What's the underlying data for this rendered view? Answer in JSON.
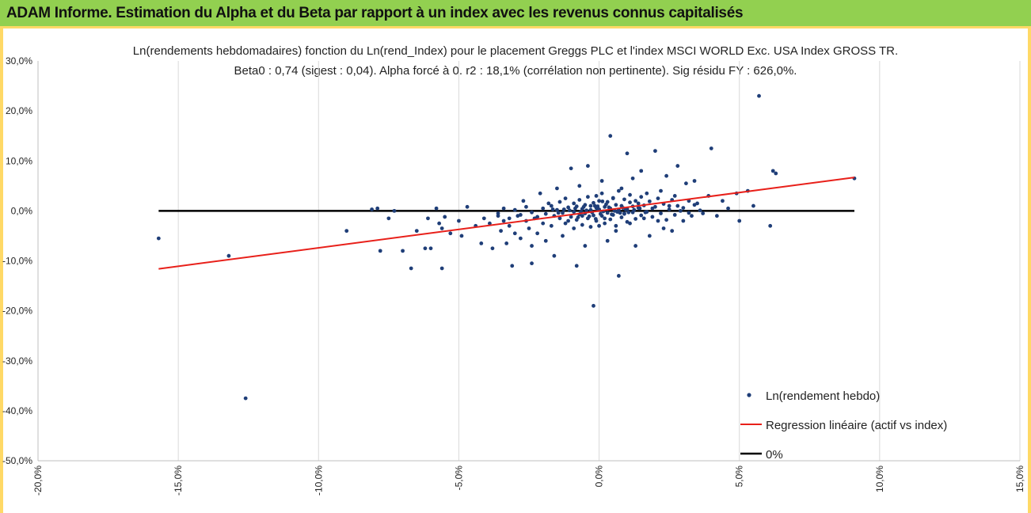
{
  "header": {
    "title": "ADAM Informe. Estimation du Alpha et du Beta par rapport à un index avec les revenus connus capitalisés"
  },
  "colors": {
    "banner": "#92d050",
    "frame": "#ffd966",
    "points": "#1f3e78",
    "regression": "#e8201a",
    "zero": "#000000"
  },
  "chart_data": {
    "type": "scatter",
    "title": "Ln(rendements hebdomadaires) fonction du Ln(rend_Index) pour le placement Greggs PLC et l'index MSCI WORLD Exc. USA Index GROSS TR.",
    "subtitle": "Beta0 : 0,74  (sigest : 0,04).  Alpha forcé à 0. r2 : 18,1% (corrélation non pertinente). Sig résidu FY : 626,0%.",
    "xlabel": "",
    "ylabel": "",
    "xlim": [
      -20,
      15
    ],
    "ylim": [
      -50,
      30
    ],
    "x_ticks": [
      "-20,0%",
      "-15,0%",
      "-10,0%",
      "-5,0%",
      "0,0%",
      "5,0%",
      "10,0%",
      "15,0%"
    ],
    "y_ticks": [
      "30,0%",
      "20,0%",
      "10,0%",
      "0,0%",
      "-10,0%",
      "-20,0%",
      "-30,0%",
      "-40,0%",
      "-50,0%"
    ],
    "grid": "vertical",
    "legend_position": "bottom-right",
    "series": [
      {
        "name": "Ln(rendement hebdo)",
        "kind": "points",
        "points": [
          [
            -15.7,
            -5.5
          ],
          [
            -13.2,
            -9.0
          ],
          [
            -12.6,
            -37.5
          ],
          [
            -9.0,
            -4.0
          ],
          [
            -8.1,
            0.3
          ],
          [
            -7.9,
            0.5
          ],
          [
            -7.8,
            -8.0
          ],
          [
            -7.5,
            -1.5
          ],
          [
            -7.3,
            0.0
          ],
          [
            -7.0,
            -8.0
          ],
          [
            -6.7,
            -11.5
          ],
          [
            -6.5,
            -4.0
          ],
          [
            -6.2,
            -7.5
          ],
          [
            -6.1,
            -1.5
          ],
          [
            -6.0,
            -7.5
          ],
          [
            -5.8,
            0.5
          ],
          [
            -5.7,
            -2.5
          ],
          [
            -5.6,
            -3.5
          ],
          [
            -5.6,
            -11.5
          ],
          [
            -5.5,
            -1.2
          ],
          [
            -5.3,
            -4.5
          ],
          [
            -5.0,
            -2.0
          ],
          [
            -4.9,
            -5.0
          ],
          [
            -4.7,
            0.8
          ],
          [
            -4.4,
            -3.0
          ],
          [
            -4.2,
            -6.5
          ],
          [
            -4.1,
            -1.5
          ],
          [
            -3.9,
            -2.5
          ],
          [
            -3.8,
            -7.5
          ],
          [
            -3.6,
            -1.0
          ],
          [
            -3.5,
            -4.0
          ],
          [
            -3.4,
            -2.0
          ],
          [
            -3.3,
            -6.5
          ],
          [
            -3.2,
            -3.0
          ],
          [
            -3.1,
            -11.0
          ],
          [
            -3.0,
            -4.5
          ],
          [
            -2.9,
            -1.0
          ],
          [
            -2.8,
            -5.5
          ],
          [
            -2.7,
            2.0
          ],
          [
            -2.6,
            -2.0
          ],
          [
            -2.5,
            -3.5
          ],
          [
            -2.4,
            -7.0
          ],
          [
            -2.4,
            -10.5
          ],
          [
            -2.3,
            -1.5
          ],
          [
            -2.2,
            -4.5
          ],
          [
            -2.1,
            3.5
          ],
          [
            -2.0,
            -2.5
          ],
          [
            -1.9,
            -6.0
          ],
          [
            -1.8,
            1.5
          ],
          [
            -1.7,
            -3.0
          ],
          [
            -1.6,
            -9.0
          ],
          [
            -1.5,
            4.5
          ],
          [
            -1.4,
            -1.5
          ],
          [
            -1.3,
            -5.0
          ],
          [
            -1.2,
            2.5
          ],
          [
            -1.1,
            -2.0
          ],
          [
            -1.0,
            8.5
          ],
          [
            -0.9,
            -3.5
          ],
          [
            -0.8,
            -11.0
          ],
          [
            -0.7,
            5.0
          ],
          [
            -0.6,
            -1.0
          ],
          [
            -0.5,
            -7.0
          ],
          [
            -0.4,
            9.0
          ],
          [
            -0.3,
            1.0
          ],
          [
            -0.2,
            -19.0
          ],
          [
            -0.1,
            3.0
          ],
          [
            0.0,
            -3.0
          ],
          [
            0.1,
            6.0
          ],
          [
            0.2,
            -1.5
          ],
          [
            0.3,
            -6.0
          ],
          [
            0.4,
            15.0
          ],
          [
            0.5,
            2.5
          ],
          [
            0.6,
            -4.0
          ],
          [
            0.7,
            -13.0
          ],
          [
            0.8,
            4.5
          ],
          [
            0.9,
            -0.5
          ],
          [
            1.0,
            11.5
          ],
          [
            1.1,
            -2.5
          ],
          [
            1.2,
            6.5
          ],
          [
            1.3,
            -7.0
          ],
          [
            1.4,
            1.5
          ],
          [
            1.5,
            8.0
          ],
          [
            1.6,
            -1.5
          ],
          [
            1.7,
            3.5
          ],
          [
            1.8,
            -5.0
          ],
          [
            1.9,
            0.5
          ],
          [
            2.0,
            12.0
          ],
          [
            2.1,
            -2.0
          ],
          [
            2.2,
            4.0
          ],
          [
            2.3,
            -3.5
          ],
          [
            2.4,
            7.0
          ],
          [
            2.5,
            1.0
          ],
          [
            2.6,
            -4.0
          ],
          [
            2.7,
            3.0
          ],
          [
            2.8,
            9.0
          ],
          [
            2.9,
            0.0
          ],
          [
            3.0,
            -2.0
          ],
          [
            3.1,
            5.5
          ],
          [
            3.2,
            2.0
          ],
          [
            3.3,
            -1.0
          ],
          [
            3.4,
            6.0
          ],
          [
            3.5,
            1.5
          ],
          [
            3.7,
            -0.5
          ],
          [
            3.9,
            3.0
          ],
          [
            4.0,
            12.5
          ],
          [
            4.2,
            -1.0
          ],
          [
            4.4,
            2.0
          ],
          [
            4.6,
            0.5
          ],
          [
            4.9,
            3.5
          ],
          [
            5.0,
            -2.0
          ],
          [
            5.3,
            4.0
          ],
          [
            5.5,
            1.0
          ],
          [
            5.7,
            23.0
          ],
          [
            6.1,
            -3.0
          ],
          [
            6.2,
            8.0
          ],
          [
            6.3,
            7.5
          ],
          [
            9.1,
            6.5
          ],
          [
            -3.6,
            -0.5
          ],
          [
            -3.4,
            0.5
          ],
          [
            -3.2,
            -1.5
          ],
          [
            -3.0,
            0.2
          ],
          [
            -2.8,
            -0.8
          ],
          [
            -2.6,
            0.8
          ],
          [
            -2.4,
            -0.3
          ],
          [
            -2.2,
            -1.2
          ],
          [
            -2.0,
            0.5
          ],
          [
            -1.9,
            -0.6
          ],
          [
            -1.7,
            1.0
          ],
          [
            -1.6,
            -1.0
          ],
          [
            -1.5,
            0.2
          ],
          [
            -1.4,
            1.8
          ],
          [
            -1.3,
            -0.4
          ],
          [
            -1.2,
            -2.5
          ],
          [
            -1.1,
            0.7
          ],
          [
            -1.0,
            -1.2
          ],
          [
            -0.9,
            1.5
          ],
          [
            -0.9,
            -0.2
          ],
          [
            -0.8,
            0.9
          ],
          [
            -0.8,
            -1.8
          ],
          [
            -0.7,
            2.2
          ],
          [
            -0.7,
            -0.7
          ],
          [
            -0.6,
            0.4
          ],
          [
            -0.6,
            -2.8
          ],
          [
            -0.5,
            1.2
          ],
          [
            -0.5,
            -0.5
          ],
          [
            -0.4,
            2.8
          ],
          [
            -0.4,
            -1.5
          ],
          [
            -0.3,
            0.2
          ],
          [
            -0.3,
            -3.2
          ],
          [
            -0.2,
            1.6
          ],
          [
            -0.2,
            -0.9
          ],
          [
            -0.1,
            0.6
          ],
          [
            -0.1,
            -2.0
          ],
          [
            0.0,
            2.0
          ],
          [
            0.0,
            0.3
          ],
          [
            0.1,
            -1.0
          ],
          [
            0.1,
            3.5
          ],
          [
            0.2,
            0.8
          ],
          [
            0.2,
            -2.5
          ],
          [
            0.3,
            1.8
          ],
          [
            0.3,
            -0.4
          ],
          [
            0.4,
            0.5
          ],
          [
            0.4,
            -1.7
          ],
          [
            0.5,
            2.6
          ],
          [
            0.5,
            -0.8
          ],
          [
            0.6,
            1.2
          ],
          [
            0.6,
            -3.0
          ],
          [
            0.7,
            0.2
          ],
          [
            0.7,
            4.0
          ],
          [
            0.8,
            -1.3
          ],
          [
            0.8,
            1.0
          ],
          [
            0.9,
            2.3
          ],
          [
            0.9,
            -0.6
          ],
          [
            1.0,
            0.4
          ],
          [
            1.0,
            -2.2
          ],
          [
            1.1,
            1.7
          ],
          [
            1.1,
            3.2
          ],
          [
            1.2,
            -0.3
          ],
          [
            1.2,
            0.9
          ],
          [
            1.3,
            2.0
          ],
          [
            1.3,
            -1.6
          ],
          [
            1.4,
            0.6
          ],
          [
            1.5,
            -0.9
          ],
          [
            1.5,
            2.8
          ],
          [
            1.6,
            1.1
          ],
          [
            1.7,
            -0.2
          ],
          [
            1.8,
            1.9
          ],
          [
            1.9,
            -1.2
          ],
          [
            2.0,
            0.8
          ],
          [
            2.1,
            2.5
          ],
          [
            2.2,
            -0.5
          ],
          [
            2.3,
            1.4
          ],
          [
            2.4,
            -1.8
          ],
          [
            2.5,
            0.3
          ],
          [
            2.6,
            2.2
          ],
          [
            2.7,
            -0.8
          ],
          [
            2.8,
            1.0
          ],
          [
            3.0,
            0.6
          ],
          [
            3.2,
            -0.4
          ],
          [
            3.4,
            1.2
          ],
          [
            3.6,
            0.1
          ],
          [
            -0.45,
            0.1
          ],
          [
            -0.25,
            -0.3
          ],
          [
            -0.05,
            0.4
          ],
          [
            0.15,
            -0.1
          ],
          [
            0.35,
            0.7
          ],
          [
            0.55,
            0.0
          ],
          [
            0.75,
            -0.4
          ],
          [
            0.95,
            0.3
          ],
          [
            -0.65,
            -0.2
          ],
          [
            -0.85,
            0.5
          ],
          [
            0.25,
            1.3
          ],
          [
            0.45,
            -0.7
          ],
          [
            -0.15,
            1.0
          ],
          [
            -0.35,
            -1.1
          ],
          [
            0.65,
            -0.2
          ],
          [
            0.85,
            0.6
          ],
          [
            -0.55,
            0.8
          ],
          [
            -0.75,
            -1.3
          ],
          [
            1.05,
            -0.3
          ],
          [
            1.25,
            0.2
          ],
          [
            -1.05,
            0.1
          ],
          [
            -1.25,
            0.3
          ],
          [
            1.45,
            0.5
          ],
          [
            -1.45,
            -0.4
          ],
          [
            1.65,
            -0.3
          ],
          [
            -1.65,
            0.3
          ],
          [
            0.05,
            -0.6
          ],
          [
            -0.05,
            0.9
          ],
          [
            0.12,
            1.9
          ],
          [
            -0.12,
            -1.6
          ]
        ]
      },
      {
        "name": "Regression linéaire (actif vs index)",
        "kind": "line",
        "points": [
          [
            -15.7,
            -11.6
          ],
          [
            9.1,
            6.7
          ]
        ]
      },
      {
        "name": "0%",
        "kind": "line",
        "points": [
          [
            -15.7,
            0
          ],
          [
            9.1,
            0
          ]
        ]
      }
    ]
  }
}
